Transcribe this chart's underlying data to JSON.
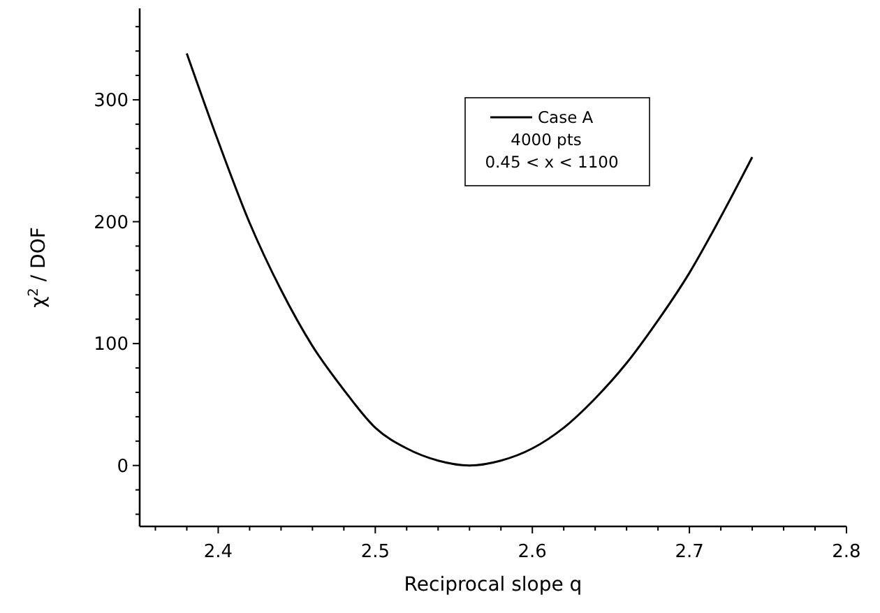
{
  "chart_data": {
    "type": "line",
    "xlabel": "Reciprocal slope q",
    "ylabel": "χ$^{2}$ / DOF",
    "x": [
      2.38,
      2.4,
      2.42,
      2.44,
      2.46,
      2.48,
      2.5,
      2.52,
      2.54,
      2.56,
      2.58,
      2.6,
      2.62,
      2.64,
      2.66,
      2.68,
      2.7,
      2.72,
      2.74
    ],
    "series": [
      {
        "name": "Case A",
        "color": "#000000",
        "values": [
          338,
          266,
          199,
          144,
          98,
          62,
          31,
          14,
          4,
          0,
          4,
          14,
          31,
          55,
          84,
          119,
          158,
          204,
          253
        ]
      }
    ],
    "annotations": [
      "4000 pts",
      "0.45 < x < 1100"
    ],
    "xlim": [
      2.35,
      2.8
    ],
    "xticks": [
      {
        "value": 2.36,
        "label": null
      },
      {
        "value": 2.38,
        "label": null
      },
      {
        "value": 2.4,
        "label": "2.4"
      },
      {
        "value": 2.42,
        "label": null
      },
      {
        "value": 2.44,
        "label": null
      },
      {
        "value": 2.46,
        "label": null
      },
      {
        "value": 2.48,
        "label": null
      },
      {
        "value": 2.5,
        "label": "2.5"
      },
      {
        "value": 2.52,
        "label": null
      },
      {
        "value": 2.54,
        "label": null
      },
      {
        "value": 2.56,
        "label": null
      },
      {
        "value": 2.58,
        "label": null
      },
      {
        "value": 2.6,
        "label": "2.6"
      },
      {
        "value": 2.62,
        "label": null
      },
      {
        "value": 2.64,
        "label": null
      },
      {
        "value": 2.66,
        "label": null
      },
      {
        "value": 2.68,
        "label": null
      },
      {
        "value": 2.7,
        "label": "2.7"
      },
      {
        "value": 2.72,
        "label": null
      },
      {
        "value": 2.74,
        "label": null
      },
      {
        "value": 2.76,
        "label": null
      },
      {
        "value": 2.78,
        "label": null
      },
      {
        "value": 2.8,
        "label": "2.8"
      }
    ],
    "ylim": [
      -50,
      375
    ],
    "yticks": [
      {
        "value": -40,
        "label": null
      },
      {
        "value": -20,
        "label": null
      },
      0,
      {
        "value": 20,
        "label": null
      },
      {
        "value": 40,
        "label": null
      },
      {
        "value": 60,
        "label": null
      },
      {
        "value": 80,
        "label": null
      },
      100,
      {
        "value": 120,
        "label": null
      },
      {
        "value": 140,
        "label": null
      },
      {
        "value": 160,
        "label": null
      },
      {
        "value": 180,
        "label": null
      },
      200,
      {
        "value": 220,
        "label": null
      },
      {
        "value": 240,
        "label": null
      },
      {
        "value": 260,
        "label": null
      },
      {
        "value": 280,
        "label": null
      },
      300,
      {
        "value": 320,
        "label": null
      },
      {
        "value": 340,
        "label": null
      },
      {
        "value": 360,
        "label": null
      }
    ],
    "legend": "top",
    "grid": false,
    "marker": "none",
    "line_style": "solid"
  }
}
